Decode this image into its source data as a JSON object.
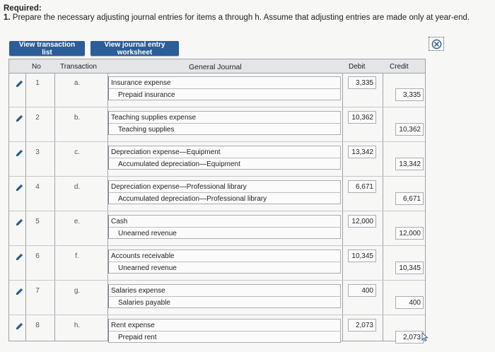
{
  "instructions": {
    "required_label": "Required:",
    "item_number": "1.",
    "item_text": " Prepare the necessary adjusting journal entries for items a through h. Assume that adjusting entries are made only at year-end."
  },
  "buttons": {
    "view_transaction_list": "View transaction list",
    "view_journal_entry_worksheet": "View journal entry worksheet"
  },
  "table": {
    "headers": {
      "no": "No",
      "transaction": "Transaction",
      "general_journal": "General Journal",
      "debit": "Debit",
      "credit": "Credit"
    },
    "rows": [
      {
        "no": "1",
        "transaction": "a.",
        "debit_account": "Insurance expense",
        "credit_account": "Prepaid insurance",
        "debit": "3,335",
        "credit": "3,335"
      },
      {
        "no": "2",
        "transaction": "b.",
        "debit_account": "Teaching supplies expense",
        "credit_account": "Teaching supplies",
        "debit": "10,362",
        "credit": "10,362"
      },
      {
        "no": "3",
        "transaction": "c.",
        "debit_account": "Depreciation expense—Equipment",
        "credit_account": "Accumulated depreciation—Equipment",
        "debit": "13,342",
        "credit": "13,342"
      },
      {
        "no": "4",
        "transaction": "d.",
        "debit_account": "Depreciation expense—Professional library",
        "credit_account": "Accumulated depreciation—Professional library",
        "debit": "6,671",
        "credit": "6,671"
      },
      {
        "no": "5",
        "transaction": "e.",
        "debit_account": "Cash",
        "credit_account": "Unearned revenue",
        "debit": "12,000",
        "credit": "12,000"
      },
      {
        "no": "6",
        "transaction": "f.",
        "debit_account": "Accounts receivable",
        "credit_account": "Unearned revenue",
        "debit": "10,345",
        "credit": "10,345"
      },
      {
        "no": "7",
        "transaction": "g.",
        "debit_account": "Salaries expense",
        "credit_account": "Salaries payable",
        "debit": "400",
        "credit": "400"
      },
      {
        "no": "8",
        "transaction": "h.",
        "debit_account": "Rent expense",
        "credit_account": "Prepaid rent",
        "debit": "2,073",
        "credit": "2,073"
      }
    ]
  },
  "colors": {
    "button_bg": "#2b5d98",
    "header_bg": "#e3e5e7",
    "edit_icon_blue": "#2b5d98",
    "close_icon_blue": "#2b5d98"
  },
  "icons": {
    "edit": "pencil-icon",
    "close": "close-circle-icon",
    "cursor": "mouse-cursor-icon"
  }
}
